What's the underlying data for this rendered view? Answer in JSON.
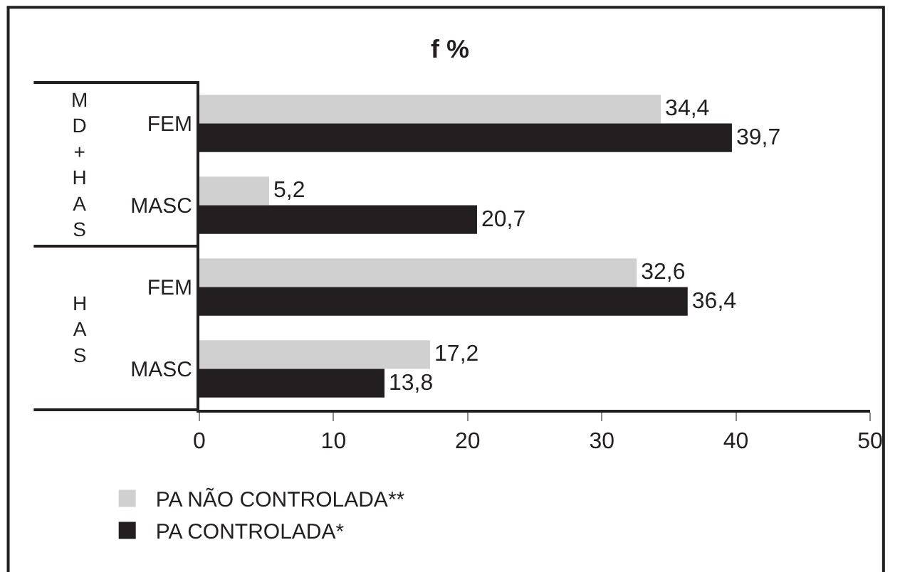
{
  "chart_data": {
    "type": "bar",
    "orientation": "horizontal",
    "title": "f %",
    "categories": [
      "FEM",
      "MASC",
      "FEM",
      "MASC"
    ],
    "series": [
      {
        "name": "PA NÃO CONTROLADA**",
        "color": "#d0d0d0",
        "values": [
          34.4,
          5.2,
          32.6,
          17.2
        ],
        "value_labels": [
          "34,4",
          "5,2",
          "32,6",
          "17,2"
        ]
      },
      {
        "name": "PA CONTROLADA*",
        "color": "#231f20",
        "values": [
          39.7,
          20.7,
          36.4,
          13.8
        ],
        "value_labels": [
          "39,7",
          "20,7",
          "36,4",
          "13,8"
        ]
      }
    ],
    "annotations": [
      "MD+HAS",
      "HAS"
    ],
    "xlim": [
      0,
      50
    ],
    "xticks": [
      0,
      10,
      20,
      30,
      40,
      50
    ],
    "legend": "bottom left"
  }
}
